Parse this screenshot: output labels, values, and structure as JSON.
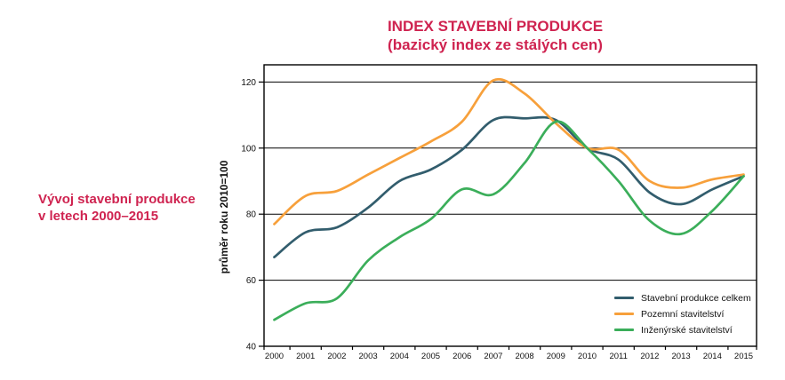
{
  "colors": {
    "accent_red": "#cf2350",
    "axis_black": "#000000",
    "background": "#ffffff"
  },
  "header": {
    "title": "INDEX STAVEBNÍ PRODUKCE",
    "subtitle": "(bazický index ze stálých cen)"
  },
  "caption": {
    "line1": "Vývoj stavební produkce",
    "line2": "v letech 2000–2015"
  },
  "chart_data": {
    "type": "line",
    "title": "INDEX STAVEBNÍ PRODUKCE (bazický index ze stálých cen)",
    "xlabel": "",
    "ylabel": "průměr roku 2010=100",
    "ylim": [
      40,
      125
    ],
    "yticks": [
      40,
      60,
      80,
      100,
      120
    ],
    "grid": "horizontal",
    "legend_position": "inside-bottom-right",
    "categories": [
      "2000",
      "2001",
      "2002",
      "2003",
      "2004",
      "2005",
      "2006",
      "2007",
      "2008",
      "2009",
      "2010",
      "2011",
      "2012",
      "2013",
      "2014",
      "2015"
    ],
    "series": [
      {
        "name": "Stavební produkce celkem",
        "color": "#325d6d",
        "values": [
          67,
          74.5,
          76,
          82,
          90,
          93.5,
          99.5,
          108.5,
          109,
          108.5,
          100,
          96.5,
          86.5,
          83,
          87.5,
          91.5
        ]
      },
      {
        "name": "Pozemní stavitelství",
        "color": "#f7a03b",
        "values": [
          77,
          85.5,
          87,
          92,
          97,
          102,
          108,
          120.5,
          116.5,
          107.5,
          100,
          99.5,
          90,
          88,
          90.5,
          92
        ]
      },
      {
        "name": "Inženýrské stavitelství",
        "color": "#3bae5a",
        "values": [
          48,
          53,
          54.5,
          66,
          73,
          78.5,
          87.5,
          86,
          95.5,
          108,
          100,
          90,
          78,
          74,
          81,
          91.5
        ]
      }
    ]
  }
}
